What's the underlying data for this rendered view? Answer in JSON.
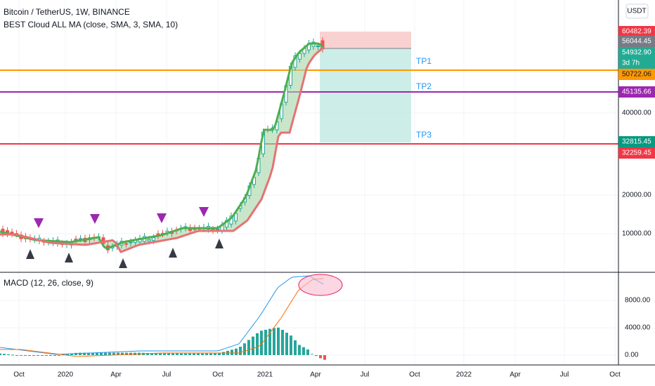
{
  "header": {
    "title": "Bitcoin / TetherUS, 1W, BINANCE",
    "indicator": "BEST Cloud ALL MA (close, SMA, 3, SMA, 10)",
    "currency": "USDT"
  },
  "price_axis": [
    "60482.39",
    "56044.45",
    "54932.90",
    "50722.06",
    "45135.66",
    "40000.00",
    "32815.45",
    "32259.45",
    "20000.00",
    "10000.00"
  ],
  "countdown": "3d 7h",
  "targets": [
    "TP1",
    "TP2",
    "TP3"
  ],
  "macd": {
    "title": "MACD (12, 26, close, 9)",
    "axis": [
      "8000.00",
      "4000.00",
      "0.00"
    ]
  },
  "time_axis": [
    "Oct",
    "2020",
    "Apr",
    "Jul",
    "Oct",
    "2021",
    "Apr",
    "Jul",
    "Oct",
    "2022",
    "Apr",
    "Jul",
    "Oct"
  ]
}
